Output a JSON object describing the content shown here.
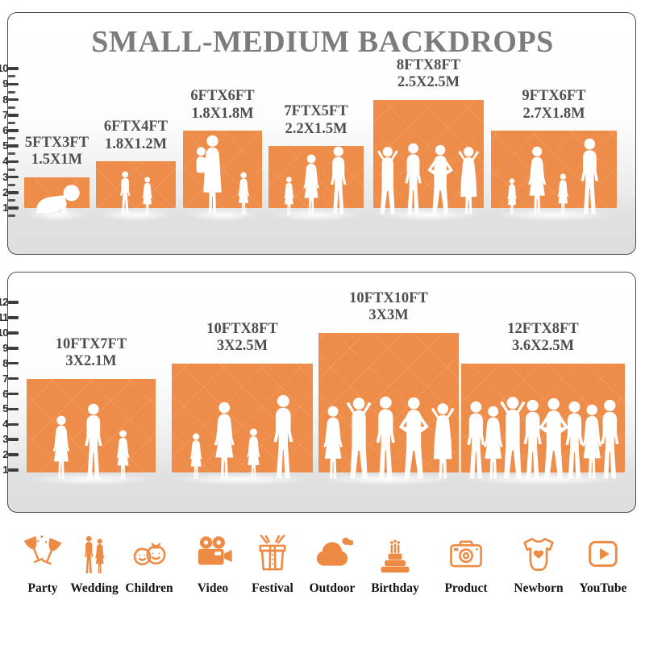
{
  "title": "SMALL-MEDIUM BACKDROPS",
  "accent_color": "#ED8B45",
  "backdrop_color": "#EE8C49",
  "panels": [
    {
      "name": "small-medium-backdrops",
      "ruler": {
        "unit": "ft",
        "tick_labels": [
          "1",
          "2",
          "3",
          "4",
          "5",
          "6",
          "7",
          "8",
          "9",
          "10"
        ]
      },
      "backdrops": [
        {
          "label_ft": "5FTX3FT",
          "label_m": "1.5X1M",
          "ft_w": 5,
          "ft_h": 3,
          "figures": [
            "baby"
          ]
        },
        {
          "label_ft": "6FTX4FT",
          "label_m": "1.8X1.2M",
          "ft_w": 6,
          "ft_h": 4,
          "figures": [
            "boy",
            "girl"
          ]
        },
        {
          "label_ft": "6FTX6FT",
          "label_m": "1.8X1.8M",
          "ft_w": 6,
          "ft_h": 6,
          "figures": [
            "woman-child",
            "girl"
          ]
        },
        {
          "label_ft": "7FTX5FT",
          "label_m": "2.2X1.5M",
          "ft_w": 7,
          "ft_h": 5,
          "figures": [
            "girl",
            "woman",
            "man"
          ]
        },
        {
          "label_ft": "8FTX8FT",
          "label_m": "2.5X2.5M",
          "ft_w": 8,
          "ft_h": 8,
          "figures": [
            "man-armsup",
            "man",
            "man-hips",
            "woman-armsup"
          ]
        },
        {
          "label_ft": "9FTX6FT",
          "label_m": "2.7X1.8M",
          "ft_w": 9,
          "ft_h": 6,
          "figures": [
            "girl",
            "woman",
            "girl",
            "man"
          ]
        }
      ]
    },
    {
      "name": "medium-large-backdrops",
      "ruler": {
        "unit": "ft",
        "tick_labels": [
          "1",
          "2",
          "3",
          "4",
          "5",
          "6",
          "7",
          "8",
          "9",
          "10",
          "11",
          "12"
        ]
      },
      "backdrops": [
        {
          "label_ft": "10FTX7FT",
          "label_m": "3X2.1M",
          "ft_w": 10,
          "ft_h": 7,
          "figures": [
            "woman",
            "man",
            "girl"
          ]
        },
        {
          "label_ft": "10FTX8FT",
          "label_m": "3X2.5M",
          "ft_w": 10,
          "ft_h": 8,
          "figures": [
            "girl",
            "woman",
            "girl",
            "man"
          ]
        },
        {
          "label_ft": "10FTX10FT",
          "label_m": "3X3M",
          "ft_w": 10,
          "ft_h": 10,
          "figures": [
            "woman",
            "man-armsup",
            "man",
            "man-hips",
            "woman-armsup"
          ]
        },
        {
          "label_ft": "12FTX8FT",
          "label_m": "3.6X2.5M",
          "ft_w": 12,
          "ft_h": 8,
          "figures": [
            "man",
            "woman",
            "man-armsup",
            "man",
            "man-hips",
            "man",
            "woman",
            "man"
          ]
        }
      ]
    }
  ],
  "categories": [
    {
      "label": "Party",
      "icon": "party"
    },
    {
      "label": "Wedding",
      "icon": "wedding"
    },
    {
      "label": "Children",
      "icon": "children"
    },
    {
      "label": "Video",
      "icon": "video"
    },
    {
      "label": "Festival",
      "icon": "festival"
    },
    {
      "label": "Outdoor",
      "icon": "outdoor"
    },
    {
      "label": "Birthday",
      "icon": "birthday"
    },
    {
      "label": "Product",
      "icon": "product"
    },
    {
      "label": "Newborn",
      "icon": "newborn"
    },
    {
      "label": "YouTube",
      "icon": "youtube"
    }
  ]
}
